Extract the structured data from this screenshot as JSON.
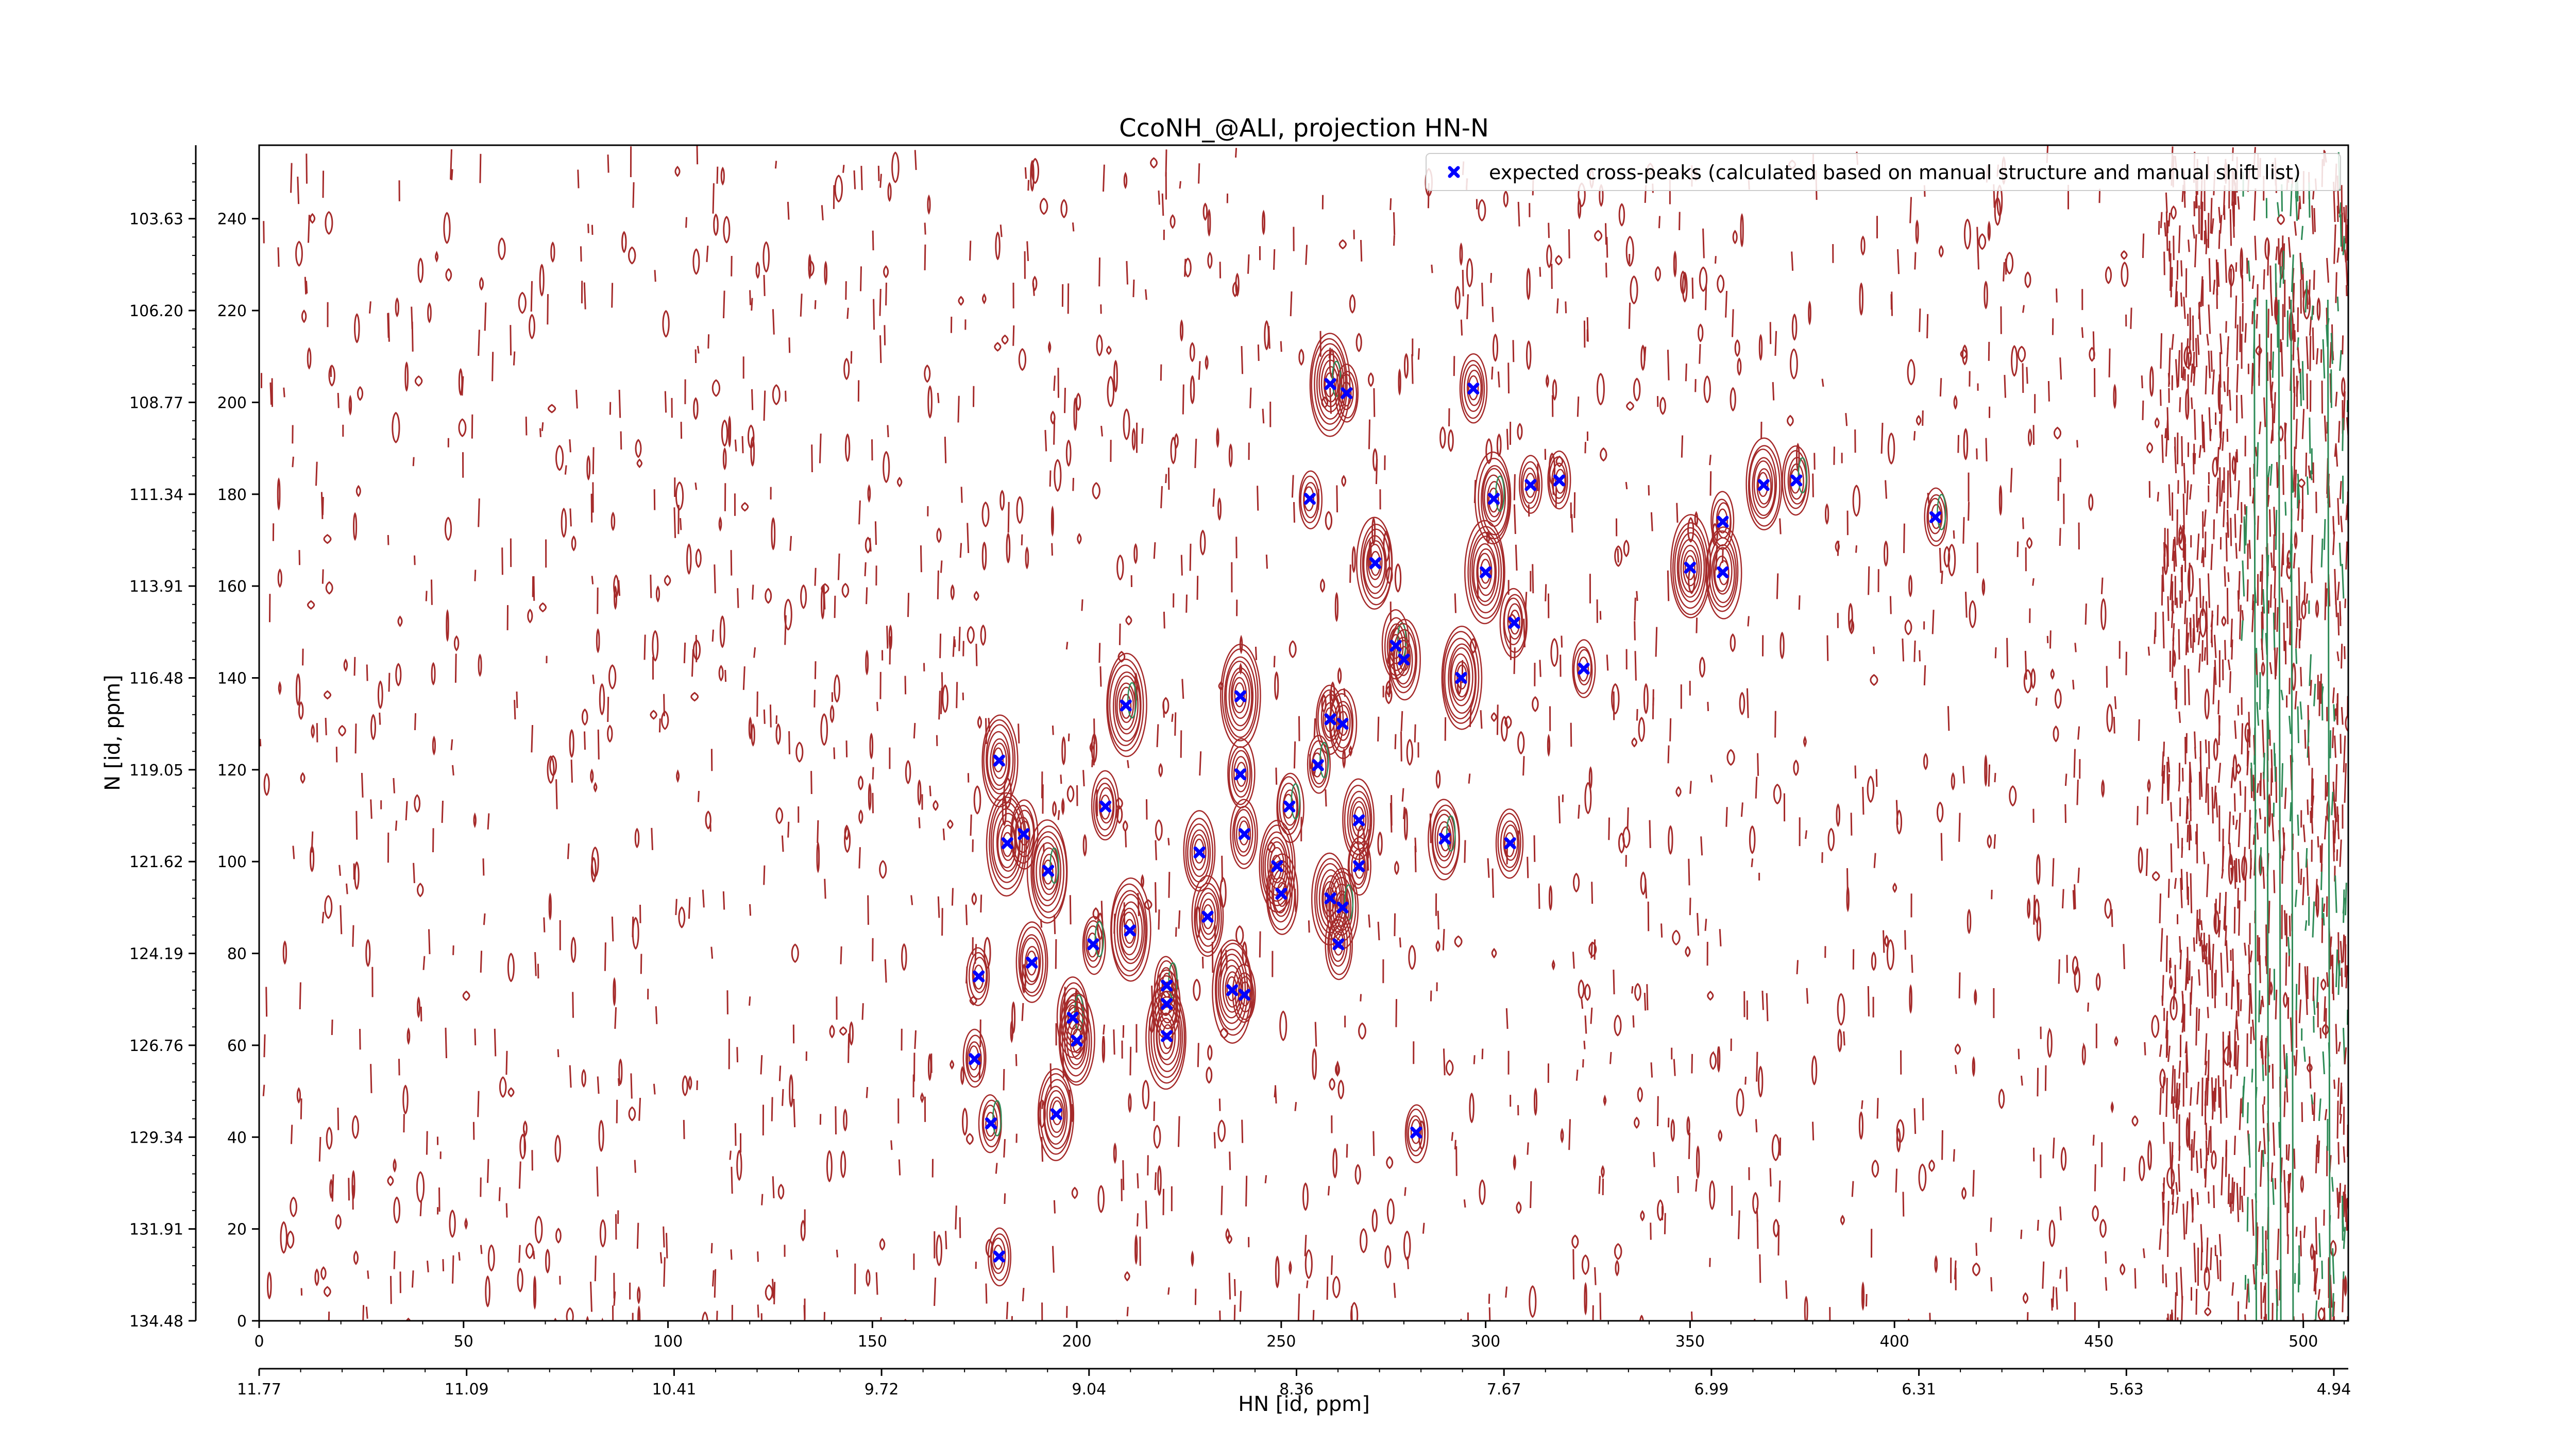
{
  "chart_data": {
    "type": "scatter",
    "title": "CcoNH_@ALI, projection HN-N",
    "xlabel": "HN [id, ppm]",
    "ylabel": "N [id, ppm]",
    "xlim": [
      0,
      511
    ],
    "ylim": [
      0,
      256
    ],
    "x_index_ticks": [
      0,
      50,
      100,
      150,
      200,
      250,
      300,
      350,
      400,
      450,
      500
    ],
    "y_index_ticks": [
      0,
      20,
      40,
      60,
      80,
      100,
      120,
      140,
      160,
      180,
      200,
      220,
      240
    ],
    "x_ppm_labels": [
      "11.77",
      "11.09",
      "10.41",
      "9.72",
      "9.04",
      "8.36",
      "7.67",
      "6.99",
      "6.31",
      "5.63",
      "4.94"
    ],
    "y_ppm_labels": [
      "134.48",
      "131.91",
      "129.34",
      "126.76",
      "124.19",
      "121.62",
      "119.05",
      "116.48",
      "113.91",
      "111.34",
      "108.77",
      "106.20",
      "103.63"
    ],
    "legend": {
      "label": "expected cross-peaks (calculated based on manual structure and manual shift list)",
      "placement": "upper right",
      "marker": "x",
      "color": "#0000ff"
    },
    "contour_colors": {
      "positive": "#a52a2a",
      "negative": "#2e8b57"
    },
    "series": [
      {
        "name": "expected cross-peaks (calculated based on manual structure and manual shift list)",
        "points": [
          [
            262,
            204
          ],
          [
            266,
            202
          ],
          [
            297,
            203
          ],
          [
            257,
            179
          ],
          [
            302,
            179
          ],
          [
            311,
            182
          ],
          [
            318,
            183
          ],
          [
            368,
            182
          ],
          [
            376,
            183
          ],
          [
            350,
            164
          ],
          [
            358,
            174
          ],
          [
            358,
            163
          ],
          [
            410,
            175
          ],
          [
            273,
            165
          ],
          [
            300,
            163
          ],
          [
            307,
            152
          ],
          [
            278,
            147
          ],
          [
            280,
            144
          ],
          [
            294,
            140
          ],
          [
            324,
            142
          ],
          [
            212,
            134
          ],
          [
            240,
            136
          ],
          [
            262,
            131
          ],
          [
            265,
            130
          ],
          [
            259,
            121
          ],
          [
            181,
            122
          ],
          [
            240,
            119
          ],
          [
            207,
            112
          ],
          [
            252,
            112
          ],
          [
            269,
            109
          ],
          [
            183,
            104
          ],
          [
            187,
            106
          ],
          [
            193,
            98
          ],
          [
            241,
            106
          ],
          [
            230,
            102
          ],
          [
            249,
            99
          ],
          [
            290,
            105
          ],
          [
            306,
            104
          ],
          [
            250,
            93
          ],
          [
            262,
            92
          ],
          [
            265,
            90
          ],
          [
            269,
            99
          ],
          [
            232,
            88
          ],
          [
            213,
            85
          ],
          [
            204,
            82
          ],
          [
            264,
            82
          ],
          [
            189,
            78
          ],
          [
            176,
            75
          ],
          [
            222,
            73
          ],
          [
            222,
            69
          ],
          [
            238,
            72
          ],
          [
            241,
            71
          ],
          [
            199,
            66
          ],
          [
            200,
            61
          ],
          [
            222,
            62
          ],
          [
            175,
            57
          ],
          [
            179,
            43
          ],
          [
            195,
            45
          ],
          [
            283,
            41
          ],
          [
            181,
            14
          ]
        ]
      }
    ]
  }
}
